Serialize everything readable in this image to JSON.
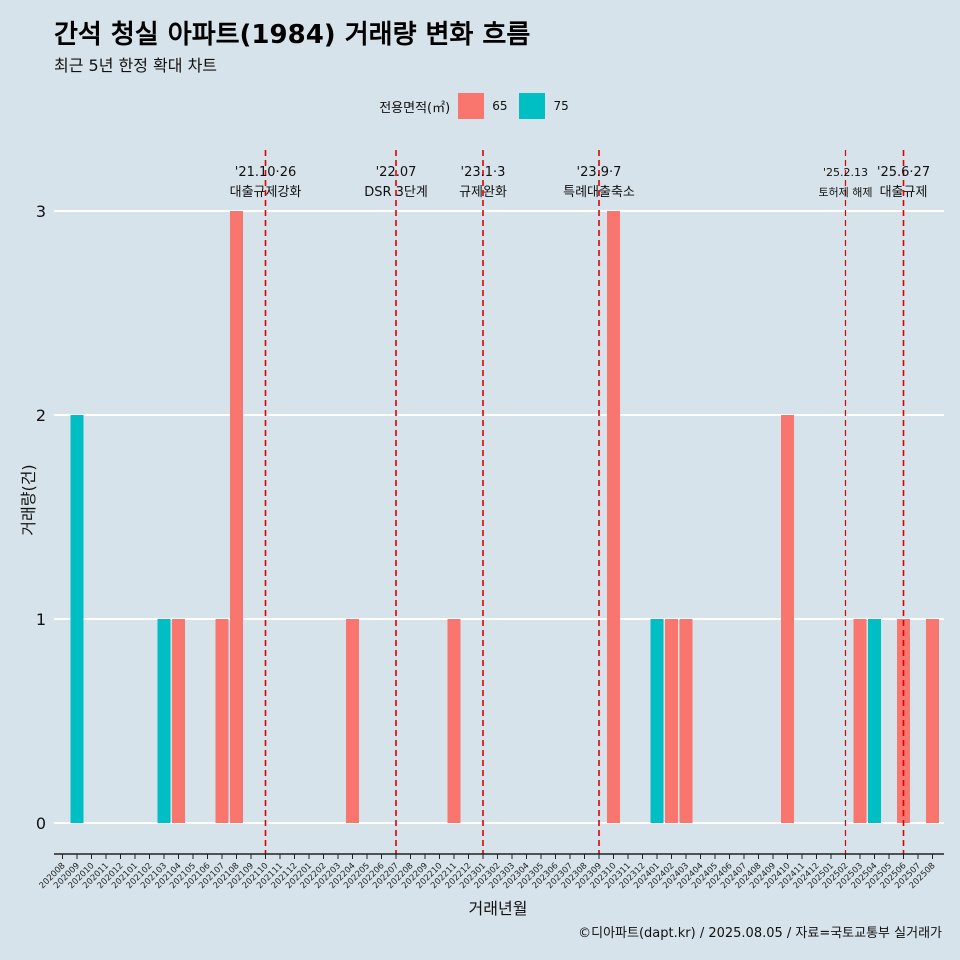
{
  "title": "간석 청실 아파트(1984) 거래량 변화 흐름",
  "subtitle": "최근 5년 한정 확대 차트",
  "caption": "©디아파트(dapt.kr) / 2025.08.05 / 자료=국토교통부 실거래가",
  "legend": {
    "title": "전용면적(㎡)",
    "items": [
      {
        "label": "65",
        "color": "#f8766d"
      },
      {
        "label": "75",
        "color": "#00bfc4"
      }
    ]
  },
  "chart_data": {
    "type": "bar",
    "xlabel": "거래년월",
    "ylabel": "거래량(건)",
    "ylim": [
      0,
      3
    ],
    "yticks": [
      0,
      1,
      2,
      3
    ],
    "grid": true,
    "legend_position": "top",
    "categories": [
      "202008",
      "202009",
      "202010",
      "202011",
      "202012",
      "202101",
      "202102",
      "202103",
      "202104",
      "202105",
      "202106",
      "202107",
      "202108",
      "202109",
      "202110",
      "202111",
      "202112",
      "202201",
      "202202",
      "202203",
      "202204",
      "202205",
      "202206",
      "202207",
      "202208",
      "202209",
      "202210",
      "202211",
      "202212",
      "202301",
      "202302",
      "202303",
      "202304",
      "202305",
      "202306",
      "202307",
      "202308",
      "202309",
      "202310",
      "202311",
      "202312",
      "202401",
      "202402",
      "202403",
      "202404",
      "202405",
      "202406",
      "202407",
      "202408",
      "202409",
      "202410",
      "202411",
      "202412",
      "202501",
      "202502",
      "202503",
      "202504",
      "202505",
      "202506",
      "202507",
      "202508"
    ],
    "bars": [
      {
        "month": "202009",
        "area": "75",
        "value": 2
      },
      {
        "month": "202103",
        "area": "75",
        "value": 1
      },
      {
        "month": "202104",
        "area": "65",
        "value": 1
      },
      {
        "month": "202107",
        "area": "65",
        "value": 1
      },
      {
        "month": "202108",
        "area": "65",
        "value": 3
      },
      {
        "month": "202204",
        "area": "65",
        "value": 1
      },
      {
        "month": "202211",
        "area": "65",
        "value": 1
      },
      {
        "month": "202310",
        "area": "65",
        "value": 3
      },
      {
        "month": "202401",
        "area": "75",
        "value": 1
      },
      {
        "month": "202402",
        "area": "65",
        "value": 1
      },
      {
        "month": "202403",
        "area": "65",
        "value": 1
      },
      {
        "month": "202410",
        "area": "65",
        "value": 2
      },
      {
        "month": "202503",
        "area": "65",
        "value": 1
      },
      {
        "month": "202504",
        "area": "75",
        "value": 1
      },
      {
        "month": "202506",
        "area": "65",
        "value": 1
      },
      {
        "month": "202508",
        "area": "65",
        "value": 1
      }
    ],
    "events": [
      {
        "month": "202110",
        "label1": "'21.10·26",
        "label2": "대출규제강화",
        "small": false
      },
      {
        "month": "202207",
        "label1": "'22.07",
        "label2": "DSR 3단계",
        "small": false
      },
      {
        "month": "202301",
        "label1": "'23.1·3",
        "label2": "규제완화",
        "small": false
      },
      {
        "month": "202309",
        "label1": "'23.9·7",
        "label2": "특례대출축소",
        "small": false
      },
      {
        "month": "202502",
        "label1": "'25.2.13",
        "label2": "토허제 해제",
        "small": true
      },
      {
        "month": "202506",
        "label1": "'25.6·27",
        "label2": "대출규제",
        "small": false
      }
    ]
  }
}
